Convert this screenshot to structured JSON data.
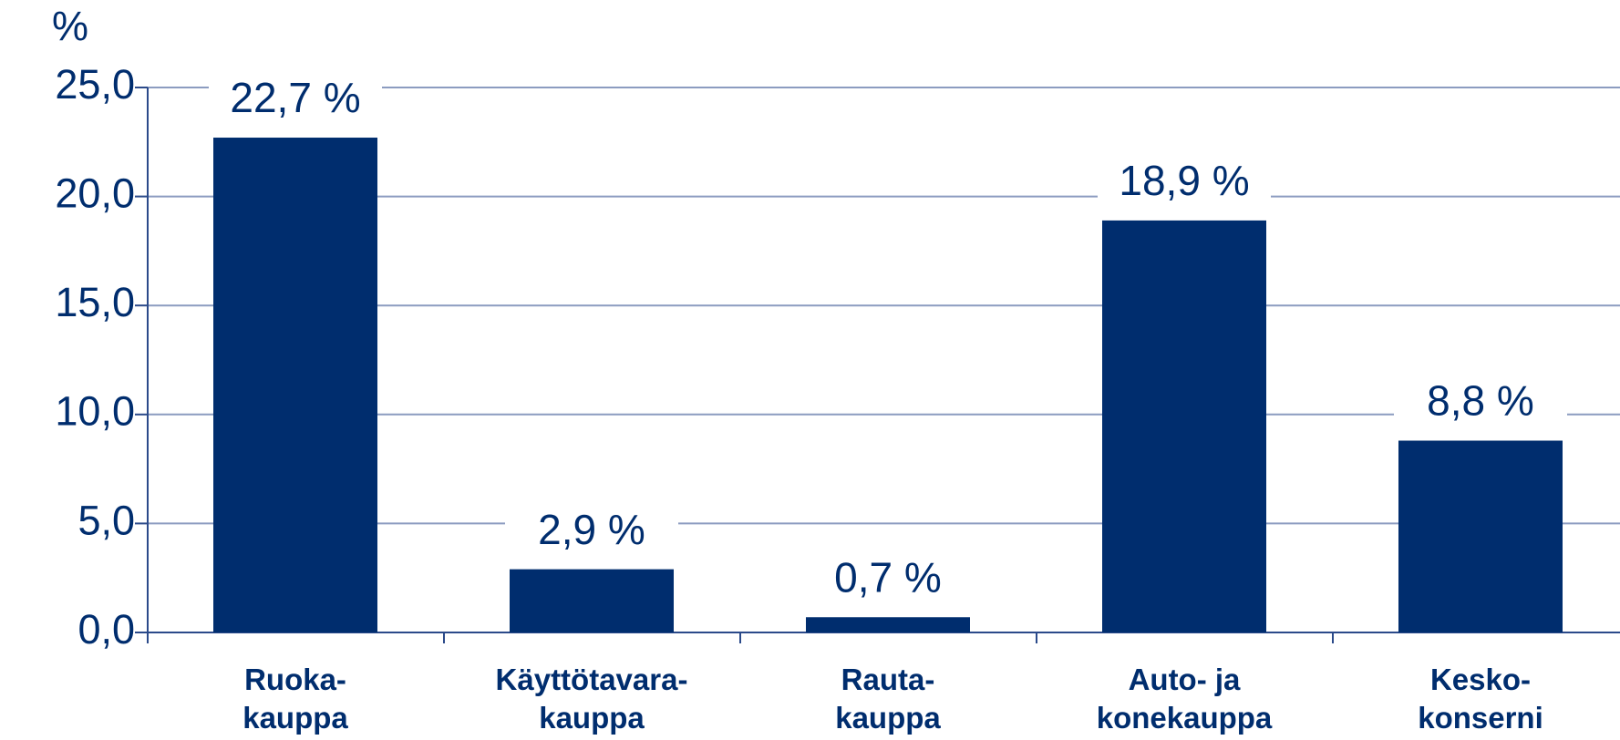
{
  "chart_data": {
    "type": "bar",
    "y_label": "%",
    "categories": [
      "Ruoka-\nkauppa",
      "Käyttötavara-\nkauppa",
      "Rauta-\nkauppa",
      "Auto- ja\nkonekauppa",
      "Kesko-\nkonserni"
    ],
    "values": [
      22.7,
      2.9,
      0.7,
      18.9,
      8.8
    ],
    "value_labels": [
      "22,7 %",
      "2,9 %",
      "0,7 %",
      "18,9 %",
      "8,8 %"
    ],
    "color": "#002d6e",
    "ylim": [
      0,
      25
    ],
    "yticks": [
      {
        "value": 0,
        "label": "0,0"
      },
      {
        "value": 5,
        "label": "5,0"
      },
      {
        "value": 10,
        "label": "10,0"
      },
      {
        "value": 15,
        "label": "15,0"
      },
      {
        "value": 20,
        "label": "20,0"
      },
      {
        "value": 25,
        "label": "25,0"
      }
    ],
    "grid": true
  }
}
